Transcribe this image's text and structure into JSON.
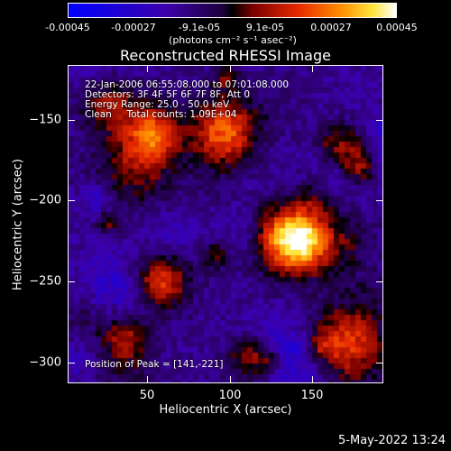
{
  "colorbar": {
    "ticks": [
      "-0.00045",
      "-0.00027",
      "-9.1e-05",
      "9.1e-05",
      "0.00027",
      "0.00045"
    ],
    "units_label": "(photons cm⁻² s⁻¹ asec⁻²)"
  },
  "title": "Reconstructed RHESSI Image",
  "annotations": {
    "time_range": "22-Jan-2006 06:55:08.000 to 07:01:08.000",
    "detectors": "Detectors: 3F 4F 5F 6F 7F 8F, Att 0",
    "energy": "Energy Range: 25.0 - 50.0 keV",
    "clean": "Clean     Total counts: 1.09E+04",
    "peak": "Position of Peak = [141,-221]"
  },
  "axes": {
    "xlabel": "Heliocentric X (arcsec)",
    "ylabel": "Heliocentric Y (arcsec)",
    "xticks": [
      "50",
      "100",
      "150"
    ],
    "yticks": [
      "−150",
      "−200",
      "−250",
      "−300"
    ]
  },
  "footer_date": "5-May-2022 13:24"
}
